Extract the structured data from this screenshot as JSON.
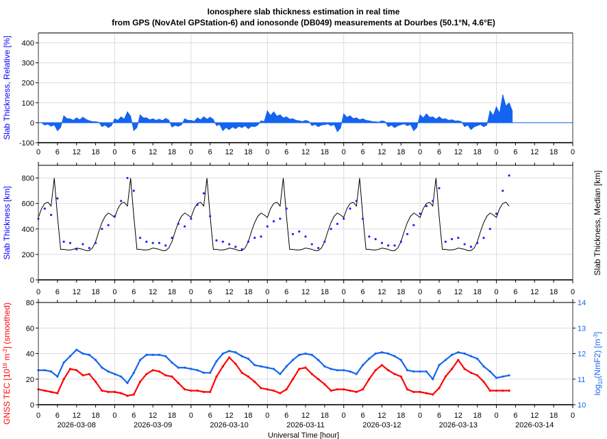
{
  "title": {
    "line1": "Ionosphere slab thickness estimation in real time",
    "line2": "from GPS (NovAtel GPStation-6) and ionosonde (DB049) measurements at Dourbes (50.1°N, 4.6°E)"
  },
  "x_axis": {
    "label": "Universal Time [hour]",
    "hour_ticks": [
      "0",
      "6",
      "12",
      "18"
    ],
    "dates": [
      "2026-03-08",
      "2026-03-09",
      "2026-03-10",
      "2026-03-11",
      "2026-03-12",
      "2026-03-13",
      "2026-03-14"
    ],
    "range_hours": [
      0,
      168
    ]
  },
  "colors": {
    "relative": "#1464f0",
    "slab_gps": "#2020ff",
    "median": "#000000",
    "tec": "#ff0000",
    "nmf2": "#1464f0",
    "left_label_blue": "#0000ff",
    "left_label_red": "#ff0000"
  },
  "chart_data": [
    {
      "type": "area",
      "ylabel": "Slab Thickness, Relative [%]",
      "ylim": [
        -100,
        450
      ],
      "yticks": [
        "-100",
        "0",
        "100",
        "200",
        "300",
        "400"
      ],
      "grid": true,
      "x_step_hours": 2,
      "values": [
        0,
        -12,
        -18,
        -40,
        35,
        20,
        25,
        28,
        10,
        5,
        -20,
        -25,
        20,
        30,
        55,
        -40,
        40,
        25,
        20,
        18,
        22,
        -22,
        -18,
        20,
        12,
        25,
        30,
        28,
        -15,
        -40,
        -35,
        -30,
        -25,
        -30,
        -20,
        10,
        60,
        55,
        40,
        30,
        20,
        10,
        12,
        -15,
        -20,
        -10,
        -15,
        -45,
        45,
        35,
        25,
        20,
        10,
        5,
        10,
        -20,
        -25,
        -10,
        -15,
        -40,
        40,
        45,
        30,
        30,
        20,
        15,
        10,
        -20,
        -35,
        -15,
        -20,
        60,
        80,
        140,
        100
      ]
    },
    {
      "type": "line+scatter",
      "ylabel": "Slab Thickness [km]",
      "y2label": "Slab Thickness, Median [km]",
      "ylim": [
        0,
        900
      ],
      "yticks": [
        "0",
        "200",
        "400",
        "600",
        "800"
      ],
      "grid": true,
      "series": [
        {
          "name": "Slab Thickness [km]",
          "kind": "scatter",
          "x_step_hours": 2,
          "values": [
            480,
            560,
            510,
            640,
            300,
            290,
            240,
            280,
            250,
            290,
            400,
            430,
            500,
            620,
            800,
            700,
            330,
            300,
            290,
            290,
            270,
            330,
            440,
            420,
            480,
            590,
            680,
            500,
            310,
            300,
            280,
            260,
            240,
            300,
            330,
            340,
            420,
            460,
            480,
            560,
            360,
            380,
            340,
            280,
            250,
            300,
            400,
            440,
            480,
            560,
            620,
            480,
            340,
            320,
            290,
            270,
            270,
            300,
            360,
            430,
            520,
            580,
            620,
            720,
            300,
            320,
            330,
            280,
            260,
            290,
            330,
            400,
            520,
            700,
            820
          ]
        },
        {
          "name": "Slab Thickness, Median [km]",
          "kind": "line",
          "daily_profile_hourly": [
            490,
            560,
            600,
            610,
            580,
            800,
            500,
            240,
            240,
            235,
            235,
            240,
            250,
            245,
            240,
            230,
            230,
            250,
            300,
            380,
            450,
            500,
            525,
            510
          ],
          "days": 6.2
        }
      ]
    },
    {
      "type": "scatter",
      "ylabel_parts": [
        "GNSS TEC [10",
        "16",
        " m",
        "-2",
        "] (smoothed)"
      ],
      "y2label_parts": [
        "log",
        "10",
        "(NmF2) [m",
        "-3",
        "]"
      ],
      "ylim": [
        0,
        80
      ],
      "y2lim": [
        10,
        14
      ],
      "yticks": [
        "0",
        "20",
        "40",
        "60",
        "80"
      ],
      "y2ticks": [
        "10",
        "11",
        "12",
        "13",
        "14"
      ],
      "grid": true,
      "series": [
        {
          "name": "GNSS TEC",
          "x_step_hours": 2,
          "values": [
            12,
            11,
            10,
            9,
            20,
            28,
            27,
            23,
            24,
            18,
            11,
            10,
            10,
            9,
            7,
            8,
            18,
            24,
            27,
            26,
            23,
            22,
            17,
            12,
            11,
            11,
            10,
            10,
            22,
            30,
            37,
            32,
            25,
            22,
            18,
            13,
            12,
            11,
            9,
            12,
            20,
            28,
            29,
            24,
            20,
            16,
            11,
            12,
            12,
            11,
            10,
            12,
            20,
            27,
            31,
            27,
            24,
            22,
            12,
            10,
            10,
            9,
            8,
            13,
            22,
            28,
            35,
            28,
            25,
            23,
            18,
            11,
            11,
            11,
            11
          ]
        },
        {
          "name": "log10(NmF2)",
          "axis": "right",
          "x_step_hours": 2,
          "values": [
            11.35,
            11.35,
            11.3,
            11.1,
            11.65,
            11.9,
            12.15,
            12.0,
            11.95,
            11.75,
            11.45,
            11.3,
            11.2,
            11.1,
            10.85,
            11.25,
            11.75,
            11.95,
            11.95,
            11.95,
            11.9,
            11.65,
            11.45,
            11.45,
            11.4,
            11.35,
            11.25,
            11.25,
            11.7,
            12.0,
            12.1,
            12.05,
            11.9,
            11.8,
            11.55,
            11.5,
            11.45,
            11.4,
            11.2,
            11.5,
            11.75,
            11.95,
            12.0,
            11.95,
            11.75,
            11.5,
            11.4,
            11.35,
            11.35,
            11.3,
            11.2,
            11.55,
            11.8,
            12.0,
            12.05,
            12.0,
            11.9,
            11.75,
            11.35,
            11.3,
            11.3,
            11.3,
            11.0,
            11.55,
            11.75,
            11.95,
            12.05,
            12.0,
            11.9,
            11.8,
            11.5,
            11.3,
            11.05,
            11.1,
            11.15
          ]
        }
      ]
    }
  ]
}
